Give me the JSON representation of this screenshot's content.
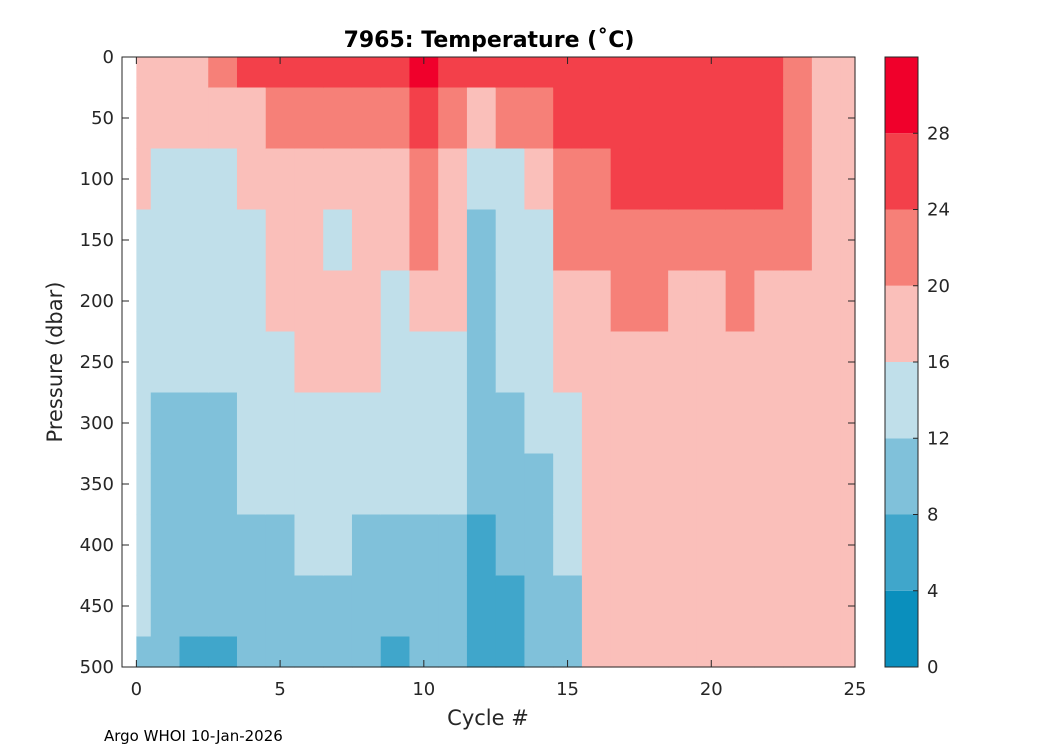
{
  "chart_data": {
    "type": "heatmap",
    "title": "7965:  Temperature (˚C)",
    "xlabel": "Cycle #",
    "ylabel": "Pressure (dbar)",
    "xlim": [
      -0.5,
      25
    ],
    "ylim": [
      500,
      0
    ],
    "xticks": [
      0,
      5,
      10,
      15,
      20,
      25
    ],
    "yticks": [
      0,
      50,
      100,
      150,
      200,
      250,
      300,
      350,
      400,
      450,
      500
    ],
    "colorbar": {
      "range": [
        0,
        32
      ],
      "ticks": [
        0,
        4,
        8,
        12,
        16,
        20,
        24,
        28
      ],
      "bins": [
        {
          "from": 0,
          "to": 4,
          "color": "#0a8fbd"
        },
        {
          "from": 4,
          "to": 8,
          "color": "#40a6cb"
        },
        {
          "from": 8,
          "to": 12,
          "color": "#80c1da"
        },
        {
          "from": 12,
          "to": 16,
          "color": "#c0dfea"
        },
        {
          "from": 16,
          "to": 20,
          "color": "#fabfba"
        },
        {
          "from": 20,
          "to": 24,
          "color": "#f68078"
        },
        {
          "from": 24,
          "to": 28,
          "color": "#f3404a"
        },
        {
          "from": 28,
          "to": 32,
          "color": "#f0002b"
        }
      ]
    },
    "depths": [
      0,
      50,
      100,
      150,
      200,
      250,
      300,
      350,
      400,
      450,
      500
    ],
    "columns": [
      {
        "cycle": 0,
        "temps": [
          19,
          18,
          16.5,
          15.5,
          14.5,
          14,
          13.5,
          13,
          12.5,
          12,
          11.5
        ]
      },
      {
        "cycle": 1,
        "temps": [
          19,
          17,
          14.5,
          13.5,
          13,
          12,
          11.5,
          10.5,
          10,
          9,
          8.5
        ]
      },
      {
        "cycle": 2,
        "temps": [
          19,
          17,
          12.5,
          13.5,
          13,
          12,
          11,
          10,
          9,
          8,
          7
        ]
      },
      {
        "cycle": 3,
        "temps": [
          20,
          17.5,
          14.5,
          14,
          13,
          12.5,
          11.5,
          10.5,
          9.5,
          8.5,
          7.5
        ]
      },
      {
        "cycle": 4,
        "temps": [
          24,
          18.5,
          16,
          14.5,
          13.5,
          13,
          12.5,
          12,
          11,
          10,
          9
        ]
      },
      {
        "cycle": 5,
        "temps": [
          25,
          22,
          18.5,
          17.5,
          16,
          14.5,
          13,
          12,
          11,
          10,
          9
        ]
      },
      {
        "cycle": 6,
        "temps": [
          25,
          23,
          19.5,
          18.5,
          18,
          16.5,
          15,
          13,
          12,
          11,
          10
        ]
      },
      {
        "cycle": 7,
        "temps": [
          25,
          21,
          17,
          15.5,
          16.5,
          17,
          15.5,
          14,
          12.5,
          11,
          10
        ]
      },
      {
        "cycle": 8,
        "temps": [
          24,
          20,
          18,
          17.5,
          17,
          16.5,
          14.5,
          12.5,
          11,
          9.5,
          8.5
        ]
      },
      {
        "cycle": 9,
        "temps": [
          25,
          22,
          19,
          18,
          15.5,
          14,
          13.5,
          12.5,
          10.5,
          8,
          6.5
        ]
      },
      {
        "cycle": 10,
        "temps": [
          28,
          24,
          22,
          20,
          16.5,
          15,
          14,
          13,
          11.5,
          9.5,
          8
        ]
      },
      {
        "cycle": 11,
        "temps": [
          25,
          21.5,
          19,
          18,
          16,
          15,
          14,
          13,
          11.5,
          10,
          9
        ]
      },
      {
        "cycle": 12,
        "temps": [
          25,
          18,
          13,
          11,
          11.5,
          11,
          10.5,
          9.5,
          7.5,
          6.5,
          5
        ]
      },
      {
        "cycle": 13,
        "temps": [
          25,
          21,
          14.5,
          13.5,
          13.5,
          12,
          11.5,
          10,
          8.5,
          7,
          6
        ]
      },
      {
        "cycle": 14,
        "temps": [
          25,
          22,
          17,
          15.5,
          15,
          14,
          12.5,
          11.5,
          10,
          9,
          8
        ]
      },
      {
        "cycle": 15,
        "temps": [
          25,
          24.5,
          21,
          20,
          19,
          17,
          15.5,
          13.5,
          12,
          11,
          10
        ]
      },
      {
        "cycle": 16,
        "temps": [
          25,
          24.5,
          22,
          21,
          18.5,
          17.5,
          17,
          17,
          17,
          17,
          17
        ]
      },
      {
        "cycle": 17,
        "temps": [
          25,
          24.5,
          24,
          21,
          20.5,
          19.5,
          19,
          18.5,
          18,
          18,
          18
        ]
      },
      {
        "cycle": 18,
        "temps": [
          25,
          24.5,
          24,
          20,
          20,
          19.5,
          19,
          18.5,
          18,
          18,
          19
        ]
      },
      {
        "cycle": 19,
        "temps": [
          25,
          24.5,
          24,
          20.5,
          19.5,
          19.5,
          19,
          18.5,
          18.5,
          19,
          19.5
        ]
      },
      {
        "cycle": 20,
        "temps": [
          25,
          24.5,
          24,
          20.5,
          19.5,
          19.5,
          19,
          18.5,
          18.5,
          19,
          19.5
        ]
      },
      {
        "cycle": 21,
        "temps": [
          25,
          24.5,
          24,
          21,
          20,
          19.5,
          19,
          18.5,
          18.5,
          19,
          19.5
        ]
      },
      {
        "cycle": 22,
        "temps": [
          25,
          24.5,
          24,
          20.5,
          19.5,
          19.5,
          19,
          18.5,
          18.5,
          19,
          19.5
        ]
      },
      {
        "cycle": 23,
        "temps": [
          23,
          22.5,
          22,
          20,
          19.5,
          19.5,
          19,
          19,
          18.5,
          18.5,
          19
        ]
      },
      {
        "cycle": 24,
        "temps": [
          19,
          18.5,
          18.5,
          18.5,
          18.5,
          18,
          18,
          18,
          18,
          18,
          18
        ]
      },
      {
        "cycle": 25,
        "temps": [
          18.5,
          18.5,
          18.5,
          18.5,
          18.5,
          18,
          18,
          18,
          18,
          18,
          18
        ]
      }
    ]
  },
  "footer": "Argo WHOI 10-Jan-2026"
}
